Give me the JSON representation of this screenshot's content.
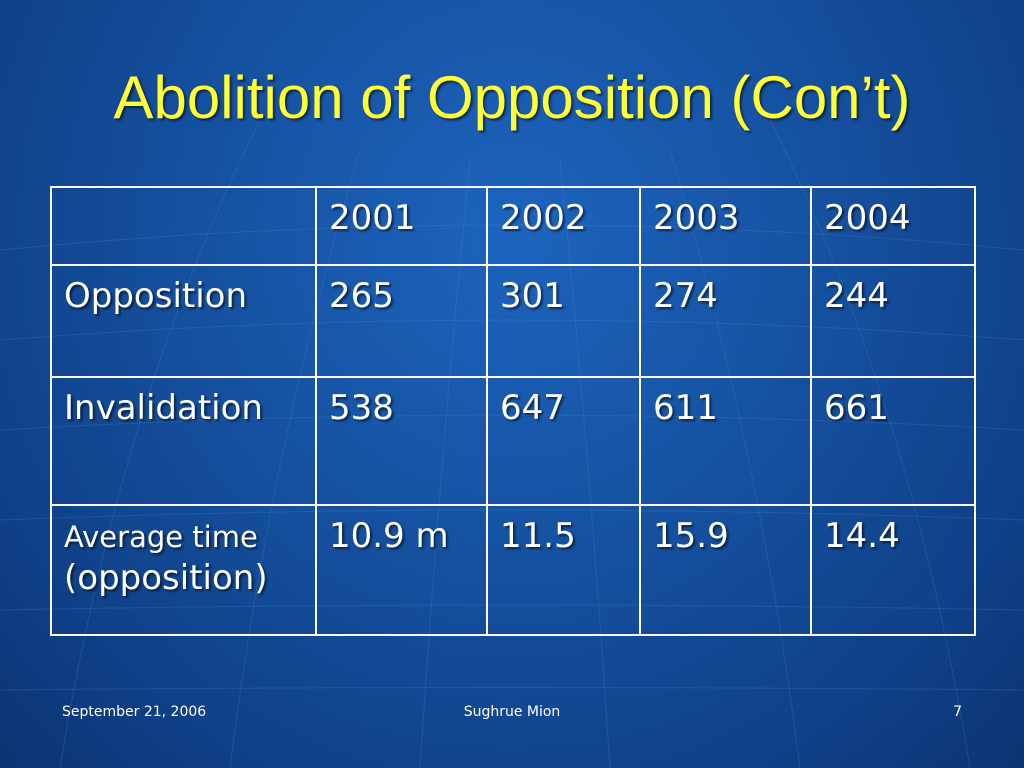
{
  "slide": {
    "title": "Abolition of Opposition (Con’t)",
    "title_color": "#ffff33",
    "background_color": "#15509f"
  },
  "table": {
    "header": [
      "",
      "2001",
      "2002",
      "2003",
      "2004"
    ],
    "rows": [
      {
        "label": "Opposition",
        "cells": [
          "265",
          "301",
          "274",
          "244"
        ]
      },
      {
        "label": "Invalidation",
        "cells": [
          "538",
          "647",
          "611",
          "661"
        ]
      },
      {
        "label_line1": "Average time",
        "label_line2": "(opposition)",
        "cells": [
          "10.9 m",
          "11.5",
          "15.9",
          "14.4"
        ]
      }
    ]
  },
  "footer": {
    "date": "September 21, 2006",
    "center": "Sughrue Mion",
    "page": "7"
  }
}
